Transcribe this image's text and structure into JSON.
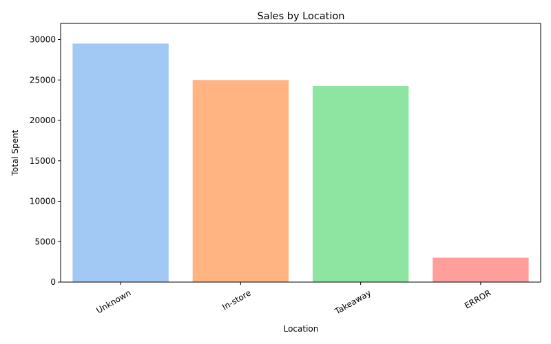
{
  "chart_data": {
    "type": "bar",
    "title": "Sales by Location",
    "xlabel": "Location",
    "ylabel": "Total Spent",
    "categories": [
      "Unknown",
      "In-store",
      "Takeaway",
      "ERROR"
    ],
    "values": [
      29500,
      25000,
      24250,
      3020
    ],
    "colors": [
      "#a1c9f4",
      "#ffb482",
      "#8de5a1",
      "#ff9f9b"
    ],
    "ylim": [
      0,
      32000
    ],
    "yticks": [
      0,
      5000,
      10000,
      15000,
      20000,
      25000,
      30000
    ],
    "ytick_labels": [
      "0",
      "5000",
      "10000",
      "15000",
      "20000",
      "25000",
      "30000"
    ],
    "xtick_rotation": -30,
    "grid": false,
    "legend": "none"
  }
}
